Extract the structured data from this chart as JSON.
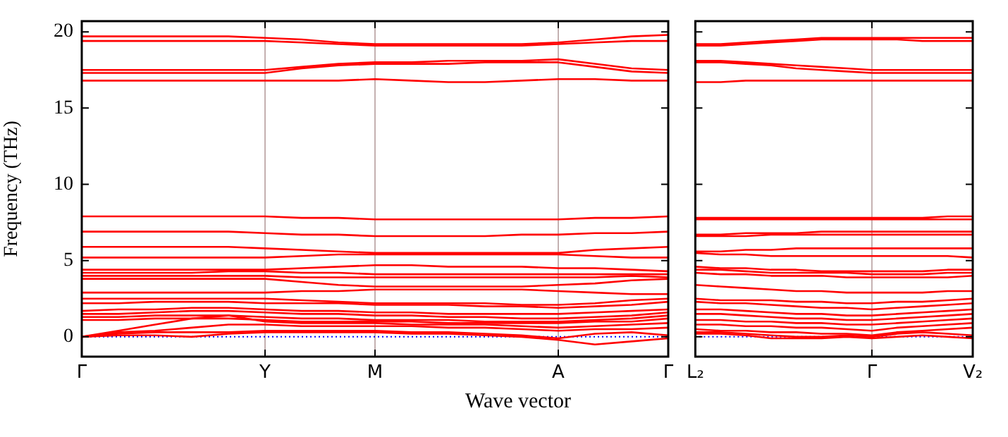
{
  "chart_data": [
    {
      "type": "line",
      "xlabel": "Wave vector",
      "ylabel": "Frequency (THz)",
      "categories": [
        "Γ",
        null,
        null,
        null,
        null,
        "Y",
        null,
        null,
        "M",
        null,
        null,
        null,
        null,
        "A",
        null,
        null,
        "Γ"
      ],
      "ylim": [
        -1.3,
        20.7
      ],
      "yticks": [
        0,
        5,
        10,
        15,
        20
      ],
      "grid": "x",
      "ref_lines": [
        {
          "axis": "y",
          "value": 0,
          "color": "#0000ff",
          "line_style": "dotted"
        }
      ],
      "series": [
        {
          "color": "#ff0000",
          "values": [
            19.7,
            19.7,
            19.7,
            19.7,
            19.7,
            19.6,
            19.5,
            19.3,
            19.2,
            19.2,
            19.2,
            19.2,
            19.2,
            19.3,
            19.5,
            19.7,
            19.8
          ]
        },
        {
          "color": "#ff0000",
          "values": [
            19.4,
            19.4,
            19.4,
            19.4,
            19.4,
            19.4,
            19.3,
            19.2,
            19.1,
            19.1,
            19.1,
            19.1,
            19.1,
            19.2,
            19.3,
            19.4,
            19.4
          ]
        },
        {
          "color": "#ff0000",
          "values": [
            17.5,
            17.5,
            17.5,
            17.5,
            17.5,
            17.5,
            17.7,
            17.9,
            18.0,
            18.0,
            18.1,
            18.1,
            18.1,
            18.2,
            17.9,
            17.6,
            17.5
          ]
        },
        {
          "color": "#ff0000",
          "values": [
            17.3,
            17.3,
            17.3,
            17.3,
            17.3,
            17.3,
            17.6,
            17.8,
            17.9,
            17.9,
            17.9,
            18.0,
            18.0,
            18.0,
            17.7,
            17.4,
            17.3
          ]
        },
        {
          "color": "#ff0000",
          "values": [
            16.8,
            16.8,
            16.8,
            16.8,
            16.8,
            16.8,
            16.8,
            16.8,
            16.9,
            16.8,
            16.7,
            16.7,
            16.8,
            16.9,
            16.9,
            16.8,
            16.8
          ]
        },
        {
          "color": "#ff0000",
          "values": [
            7.9,
            7.9,
            7.9,
            7.9,
            7.9,
            7.9,
            7.8,
            7.8,
            7.7,
            7.7,
            7.7,
            7.7,
            7.7,
            7.7,
            7.8,
            7.8,
            7.9
          ]
        },
        {
          "color": "#ff0000",
          "values": [
            6.9,
            6.9,
            6.9,
            6.9,
            6.9,
            6.8,
            6.7,
            6.7,
            6.6,
            6.6,
            6.6,
            6.6,
            6.7,
            6.7,
            6.8,
            6.8,
            6.9
          ]
        },
        {
          "color": "#ff0000",
          "values": [
            5.9,
            5.9,
            5.9,
            5.9,
            5.9,
            5.8,
            5.7,
            5.6,
            5.5,
            5.5,
            5.5,
            5.5,
            5.5,
            5.5,
            5.7,
            5.8,
            5.9
          ]
        },
        {
          "color": "#ff0000",
          "values": [
            5.2,
            5.2,
            5.2,
            5.2,
            5.2,
            5.2,
            5.3,
            5.4,
            5.4,
            5.4,
            5.4,
            5.4,
            5.4,
            5.4,
            5.3,
            5.2,
            5.2
          ]
        },
        {
          "color": "#ff0000",
          "values": [
            4.4,
            4.4,
            4.4,
            4.4,
            4.4,
            4.4,
            4.5,
            4.6,
            4.7,
            4.7,
            4.6,
            4.6,
            4.6,
            4.5,
            4.5,
            4.4,
            4.3
          ]
        },
        {
          "color": "#ff0000",
          "values": [
            4.2,
            4.2,
            4.2,
            4.2,
            4.3,
            4.3,
            4.2,
            4.2,
            4.1,
            4.1,
            4.1,
            4.1,
            4.1,
            4.1,
            4.1,
            4.1,
            4.1
          ]
        },
        {
          "color": "#ff0000",
          "values": [
            4.0,
            4.0,
            4.0,
            4.0,
            4.0,
            4.0,
            3.9,
            3.9,
            3.9,
            3.9,
            3.9,
            3.9,
            3.9,
            3.9,
            3.9,
            4.0,
            3.9
          ]
        },
        {
          "color": "#ff0000",
          "values": [
            3.8,
            3.8,
            3.8,
            3.8,
            3.8,
            3.8,
            3.6,
            3.4,
            3.3,
            3.3,
            3.3,
            3.3,
            3.3,
            3.4,
            3.5,
            3.7,
            3.8
          ]
        },
        {
          "color": "#ff0000",
          "values": [
            2.9,
            2.9,
            2.9,
            2.9,
            2.9,
            2.9,
            3.0,
            3.0,
            3.1,
            3.1,
            3.1,
            3.1,
            3.1,
            3.0,
            2.9,
            2.8,
            2.8
          ]
        },
        {
          "color": "#ff0000",
          "values": [
            2.5,
            2.5,
            2.5,
            2.5,
            2.5,
            2.5,
            2.4,
            2.3,
            2.2,
            2.2,
            2.2,
            2.2,
            2.1,
            2.1,
            2.2,
            2.4,
            2.5
          ]
        },
        {
          "color": "#ff0000",
          "values": [
            2.2,
            2.2,
            2.3,
            2.3,
            2.3,
            2.2,
            2.2,
            2.2,
            2.1,
            2.1,
            2.1,
            2.0,
            2.0,
            1.9,
            2.0,
            2.1,
            2.3
          ]
        },
        {
          "color": "#ff0000",
          "values": [
            1.7,
            1.8,
            1.8,
            1.9,
            1.9,
            1.8,
            1.7,
            1.7,
            1.6,
            1.6,
            1.5,
            1.5,
            1.5,
            1.5,
            1.6,
            1.7,
            1.8
          ]
        },
        {
          "color": "#ff0000",
          "values": [
            1.5,
            1.5,
            1.6,
            1.7,
            1.7,
            1.6,
            1.5,
            1.5,
            1.4,
            1.4,
            1.3,
            1.3,
            1.2,
            1.2,
            1.3,
            1.4,
            1.6
          ]
        },
        {
          "color": "#ff0000",
          "values": [
            1.3,
            1.3,
            1.4,
            1.4,
            1.4,
            1.3,
            1.2,
            1.2,
            1.1,
            1.1,
            1.1,
            1.0,
            1.0,
            1.0,
            1.1,
            1.2,
            1.4
          ]
        },
        {
          "color": "#ff0000",
          "values": [
            1.1,
            1.1,
            1.2,
            1.2,
            1.2,
            1.1,
            1.0,
            1.0,
            1.0,
            1.0,
            0.9,
            0.9,
            0.9,
            0.9,
            1.0,
            1.0,
            1.2
          ]
        },
        {
          "color": "#ff0000",
          "values": [
            0.0,
            0.4,
            0.8,
            1.2,
            1.4,
            1.0,
            0.9,
            0.9,
            0.9,
            0.8,
            0.8,
            0.8,
            0.7,
            0.6,
            0.7,
            0.8,
            0.9
          ]
        },
        {
          "color": "#ff0000",
          "values": [
            0.0,
            0.3,
            0.4,
            0.6,
            0.8,
            0.8,
            0.7,
            0.7,
            0.7,
            0.7,
            0.6,
            0.6,
            0.5,
            0.4,
            0.5,
            0.5,
            0.6
          ]
        },
        {
          "color": "#ff0000",
          "values": [
            0.0,
            0.1,
            0.1,
            0.0,
            0.2,
            0.3,
            0.3,
            0.3,
            0.3,
            0.2,
            0.2,
            0.1,
            0.0,
            -0.2,
            -0.5,
            -0.3,
            -0.1
          ]
        },
        {
          "color": "#ff0000",
          "values": [
            0.0,
            0.2,
            0.3,
            0.3,
            0.3,
            0.4,
            0.4,
            0.4,
            0.4,
            0.3,
            0.3,
            0.2,
            0.1,
            -0.1,
            0.2,
            0.3,
            0.1
          ]
        }
      ]
    },
    {
      "type": "line",
      "categories": [
        "L₂",
        null,
        null,
        null,
        null,
        null,
        null,
        "Γ",
        null,
        null,
        null,
        "V₂"
      ],
      "ylim": [
        -1.3,
        20.7
      ],
      "yticks": [
        0,
        5,
        10,
        15,
        20
      ],
      "tick_labels": "x",
      "ref_lines": [
        {
          "axis": "y",
          "value": 0,
          "color": "#0000ff",
          "line_style": "dotted"
        },
        {
          "axis": "x",
          "value": "Γ",
          "color": "#c4b0b0",
          "line_style": "solid"
        }
      ],
      "series": [
        {
          "color": "#ff0000",
          "values": [
            19.2,
            19.2,
            19.3,
            19.4,
            19.5,
            19.6,
            19.6,
            19.6,
            19.6,
            19.6,
            19.6,
            19.6
          ]
        },
        {
          "color": "#ff0000",
          "values": [
            19.1,
            19.1,
            19.2,
            19.3,
            19.4,
            19.5,
            19.5,
            19.5,
            19.5,
            19.4,
            19.4,
            19.4
          ]
        },
        {
          "color": "#ff0000",
          "values": [
            18.1,
            18.1,
            18.0,
            17.9,
            17.8,
            17.7,
            17.6,
            17.5,
            17.5,
            17.5,
            17.5,
            17.5
          ]
        },
        {
          "color": "#ff0000",
          "values": [
            18.0,
            18.0,
            17.9,
            17.8,
            17.6,
            17.5,
            17.4,
            17.3,
            17.3,
            17.3,
            17.3,
            17.3
          ]
        },
        {
          "color": "#ff0000",
          "values": [
            16.7,
            16.7,
            16.8,
            16.8,
            16.8,
            16.8,
            16.8,
            16.8,
            16.8,
            16.8,
            16.8,
            16.8
          ]
        },
        {
          "color": "#ff0000",
          "values": [
            7.8,
            7.8,
            7.8,
            7.8,
            7.8,
            7.8,
            7.8,
            7.8,
            7.8,
            7.8,
            7.9,
            7.9
          ]
        },
        {
          "color": "#ff0000",
          "values": [
            7.7,
            7.7,
            7.7,
            7.7,
            7.7,
            7.7,
            7.7,
            7.7,
            7.7,
            7.7,
            7.7,
            7.7
          ]
        },
        {
          "color": "#ff0000",
          "values": [
            6.7,
            6.7,
            6.8,
            6.8,
            6.8,
            6.9,
            6.9,
            6.9,
            6.9,
            6.9,
            6.9,
            6.9
          ]
        },
        {
          "color": "#ff0000",
          "values": [
            6.6,
            6.6,
            6.6,
            6.7,
            6.7,
            6.7,
            6.7,
            6.7,
            6.7,
            6.7,
            6.7,
            6.7
          ]
        },
        {
          "color": "#ff0000",
          "values": [
            5.6,
            5.6,
            5.7,
            5.7,
            5.8,
            5.8,
            5.8,
            5.8,
            5.8,
            5.8,
            5.8,
            5.8
          ]
        },
        {
          "color": "#ff0000",
          "values": [
            5.5,
            5.4,
            5.4,
            5.3,
            5.3,
            5.3,
            5.3,
            5.3,
            5.3,
            5.3,
            5.3,
            5.2
          ]
        },
        {
          "color": "#ff0000",
          "values": [
            4.6,
            4.5,
            4.5,
            4.4,
            4.4,
            4.3,
            4.3,
            4.3,
            4.3,
            4.3,
            4.4,
            4.4
          ]
        },
        {
          "color": "#ff0000",
          "values": [
            4.4,
            4.4,
            4.3,
            4.2,
            4.2,
            4.2,
            4.2,
            4.1,
            4.1,
            4.1,
            4.2,
            4.2
          ]
        },
        {
          "color": "#ff0000",
          "values": [
            4.2,
            4.1,
            4.1,
            4.0,
            4.0,
            4.0,
            3.9,
            3.9,
            3.9,
            3.9,
            3.9,
            4.0
          ]
        },
        {
          "color": "#ff0000",
          "values": [
            3.4,
            3.3,
            3.2,
            3.1,
            3.0,
            3.0,
            2.9,
            2.9,
            2.9,
            2.9,
            3.0,
            3.0
          ]
        },
        {
          "color": "#ff0000",
          "values": [
            2.5,
            2.4,
            2.4,
            2.4,
            2.3,
            2.3,
            2.2,
            2.2,
            2.3,
            2.3,
            2.4,
            2.5
          ]
        },
        {
          "color": "#ff0000",
          "values": [
            2.3,
            2.2,
            2.2,
            2.1,
            2.0,
            1.9,
            1.9,
            1.8,
            1.9,
            2.0,
            2.1,
            2.2
          ]
        },
        {
          "color": "#ff0000",
          "values": [
            1.8,
            1.8,
            1.7,
            1.6,
            1.5,
            1.5,
            1.4,
            1.4,
            1.5,
            1.6,
            1.7,
            1.8
          ]
        },
        {
          "color": "#ff0000",
          "values": [
            1.5,
            1.5,
            1.4,
            1.3,
            1.2,
            1.2,
            1.1,
            1.1,
            1.2,
            1.3,
            1.4,
            1.5
          ]
        },
        {
          "color": "#ff0000",
          "values": [
            1.1,
            1.1,
            1.0,
            1.0,
            0.9,
            0.9,
            0.8,
            0.8,
            0.9,
            1.0,
            1.1,
            1.2
          ]
        },
        {
          "color": "#ff0000",
          "values": [
            0.8,
            0.8,
            0.7,
            0.7,
            0.6,
            0.6,
            0.5,
            0.4,
            0.6,
            0.7,
            0.8,
            0.9
          ]
        },
        {
          "color": "#ff0000",
          "values": [
            0.5,
            0.4,
            0.4,
            0.3,
            0.3,
            0.2,
            0.2,
            0.1,
            0.3,
            0.4,
            0.5,
            0.6
          ]
        },
        {
          "color": "#ff0000",
          "values": [
            0.3,
            0.3,
            0.2,
            0.1,
            0.0,
            0.0,
            0.1,
            0.0,
            0.2,
            0.3,
            0.2,
            0.1
          ]
        },
        {
          "color": "#ff0000",
          "values": [
            0.2,
            0.2,
            0.1,
            -0.1,
            -0.1,
            -0.1,
            0.0,
            -0.1,
            0.0,
            0.1,
            0.0,
            -0.1
          ]
        }
      ]
    }
  ]
}
